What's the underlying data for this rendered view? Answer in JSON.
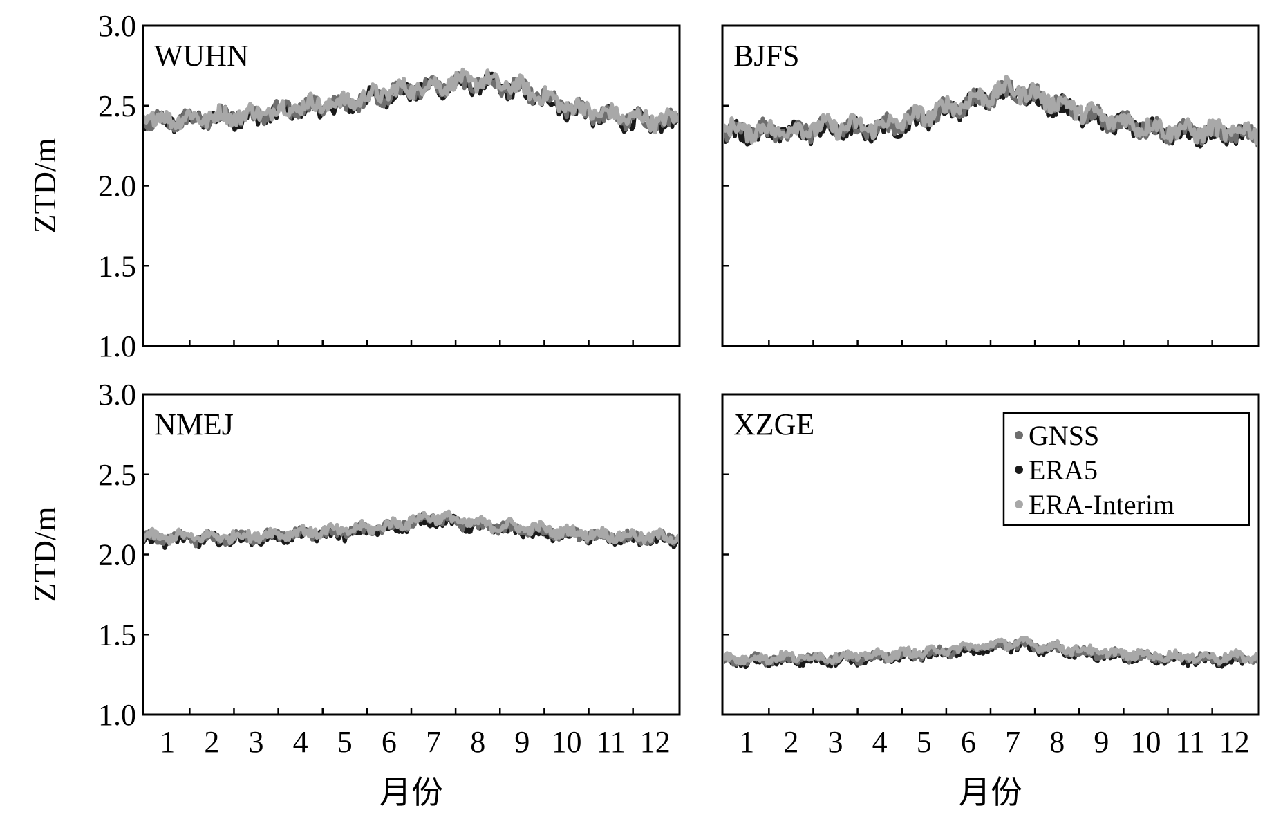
{
  "figure": {
    "legend": [
      {
        "name": "GNSS",
        "color": "#6e6e6e"
      },
      {
        "name": "ERA5",
        "color": "#1a1a1a"
      },
      {
        "name": "ERA-Interim",
        "color": "#a8a8a8"
      }
    ]
  },
  "chart_data": [
    {
      "type": "line",
      "label": "WUHN",
      "xlabel": "月份",
      "ylabel": "ZTD/m",
      "ylim": [
        1.0,
        3.0
      ],
      "yticks": [
        "1.0",
        "1.5",
        "2.0",
        "2.5",
        "3.0"
      ],
      "xticks": [
        "1",
        "2",
        "3",
        "4",
        "5",
        "6",
        "7",
        "8",
        "9",
        "10",
        "11",
        "12"
      ],
      "x": [
        1,
        2,
        3,
        4,
        5,
        6,
        7,
        8,
        9,
        10,
        11,
        12
      ],
      "grid": false,
      "series": [
        {
          "name": "GNSS",
          "values": [
            2.41,
            2.43,
            2.44,
            2.49,
            2.51,
            2.58,
            2.62,
            2.65,
            2.6,
            2.49,
            2.43,
            2.4
          ]
        },
        {
          "name": "ERA5",
          "values": [
            2.4,
            2.42,
            2.43,
            2.48,
            2.5,
            2.57,
            2.61,
            2.64,
            2.59,
            2.48,
            2.42,
            2.39
          ]
        },
        {
          "name": "ERA-Interim",
          "values": [
            2.42,
            2.43,
            2.45,
            2.5,
            2.52,
            2.59,
            2.63,
            2.66,
            2.61,
            2.5,
            2.44,
            2.41
          ]
        }
      ]
    },
    {
      "type": "line",
      "label": "BJFS",
      "xlabel": "月份",
      "ylabel": "",
      "ylim": [
        1.0,
        3.0
      ],
      "yticks": [
        "1.0",
        "1.5",
        "2.0",
        "2.5",
        "3.0"
      ],
      "xticks": [
        "1",
        "2",
        "3",
        "4",
        "5",
        "6",
        "7",
        "8",
        "9",
        "10",
        "11",
        "12"
      ],
      "x": [
        1,
        2,
        3,
        4,
        5,
        6,
        7,
        8,
        9,
        10,
        11,
        12
      ],
      "grid": false,
      "series": [
        {
          "name": "GNSS",
          "values": [
            2.34,
            2.34,
            2.36,
            2.36,
            2.43,
            2.52,
            2.6,
            2.51,
            2.42,
            2.36,
            2.33,
            2.33
          ]
        },
        {
          "name": "ERA5",
          "values": [
            2.33,
            2.33,
            2.35,
            2.35,
            2.42,
            2.51,
            2.59,
            2.5,
            2.41,
            2.35,
            2.32,
            2.32
          ]
        },
        {
          "name": "ERA-Interim",
          "values": [
            2.35,
            2.35,
            2.37,
            2.37,
            2.44,
            2.53,
            2.61,
            2.52,
            2.43,
            2.37,
            2.34,
            2.34
          ]
        }
      ]
    },
    {
      "type": "line",
      "label": "NMEJ",
      "xlabel": "月份",
      "ylabel": "ZTD/m",
      "ylim": [
        1.0,
        3.0
      ],
      "yticks": [
        "1.0",
        "1.5",
        "2.0",
        "2.5",
        "3.0"
      ],
      "xticks": [
        "1",
        "2",
        "3",
        "4",
        "5",
        "6",
        "7",
        "8",
        "9",
        "10",
        "11",
        "12"
      ],
      "x": [
        1,
        2,
        3,
        4,
        5,
        6,
        7,
        8,
        9,
        10,
        11,
        12
      ],
      "grid": false,
      "series": [
        {
          "name": "GNSS",
          "values": [
            2.1,
            2.1,
            2.11,
            2.13,
            2.14,
            2.17,
            2.23,
            2.18,
            2.16,
            2.13,
            2.11,
            2.1
          ]
        },
        {
          "name": "ERA5",
          "values": [
            2.09,
            2.09,
            2.1,
            2.12,
            2.13,
            2.16,
            2.22,
            2.17,
            2.15,
            2.12,
            2.1,
            2.09
          ]
        },
        {
          "name": "ERA-Interim",
          "values": [
            2.11,
            2.11,
            2.12,
            2.14,
            2.15,
            2.18,
            2.24,
            2.19,
            2.17,
            2.14,
            2.12,
            2.11
          ]
        }
      ]
    },
    {
      "type": "line",
      "label": "XZGE",
      "xlabel": "月份",
      "ylabel": "",
      "ylim": [
        1.0,
        3.0
      ],
      "yticks": [
        "1.0",
        "1.5",
        "2.0",
        "2.5",
        "3.0"
      ],
      "xticks": [
        "1",
        "2",
        "3",
        "4",
        "5",
        "6",
        "7",
        "8",
        "9",
        "10",
        "11",
        "12"
      ],
      "x": [
        1,
        2,
        3,
        4,
        5,
        6,
        7,
        8,
        9,
        10,
        11,
        12
      ],
      "grid": false,
      "legend_position": "top-right",
      "series": [
        {
          "name": "GNSS",
          "values": [
            1.34,
            1.35,
            1.35,
            1.36,
            1.38,
            1.41,
            1.44,
            1.41,
            1.38,
            1.36,
            1.35,
            1.35
          ]
        },
        {
          "name": "ERA5",
          "values": [
            1.33,
            1.34,
            1.34,
            1.35,
            1.37,
            1.4,
            1.43,
            1.4,
            1.37,
            1.35,
            1.34,
            1.34
          ]
        },
        {
          "name": "ERA-Interim",
          "values": [
            1.35,
            1.36,
            1.36,
            1.37,
            1.39,
            1.42,
            1.45,
            1.42,
            1.39,
            1.37,
            1.36,
            1.36
          ]
        }
      ]
    }
  ]
}
